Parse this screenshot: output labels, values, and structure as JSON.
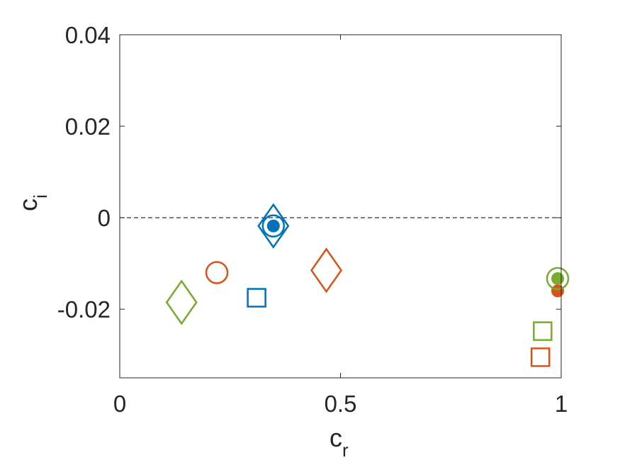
{
  "chart_data": {
    "type": "scatter",
    "title": "",
    "xlabel": {
      "base": "c",
      "sub": "r"
    },
    "ylabel": {
      "base": "c",
      "sub": "i"
    },
    "xlim": [
      0,
      1
    ],
    "ylim": [
      -0.035,
      0.04
    ],
    "x_ticks": [
      0,
      0.5,
      1
    ],
    "x_tick_labels": [
      "0",
      "0.5",
      "1"
    ],
    "y_ticks": [
      -0.02,
      0,
      0.02,
      0.04
    ],
    "y_tick_labels": [
      "-0.02",
      "0",
      "0.02",
      "0.04"
    ],
    "grid": false,
    "box": true,
    "reference_line": {
      "y": 0,
      "style": "dashed",
      "color": "#000000"
    },
    "points": [
      {
        "x": 0.348,
        "y": -0.0018,
        "marker": "diamond",
        "color": "#0072BD"
      },
      {
        "x": 0.348,
        "y": -0.0018,
        "marker": "circle",
        "color": "#0072BD"
      },
      {
        "x": 0.348,
        "y": -0.0018,
        "marker": "filled-circle",
        "color": "#0072BD"
      },
      {
        "x": 0.31,
        "y": -0.0175,
        "marker": "square",
        "color": "#0072BD"
      },
      {
        "x": 0.22,
        "y": -0.012,
        "marker": "circle",
        "color": "#D95319"
      },
      {
        "x": 0.468,
        "y": -0.0115,
        "marker": "diamond",
        "color": "#D95319"
      },
      {
        "x": 0.953,
        "y": -0.0305,
        "marker": "square",
        "color": "#D95319"
      },
      {
        "x": 0.992,
        "y": -0.016,
        "marker": "filled-circle",
        "color": "#D95319"
      },
      {
        "x": 0.14,
        "y": -0.0185,
        "marker": "diamond",
        "color": "#77AC30"
      },
      {
        "x": 0.958,
        "y": -0.0248,
        "marker": "square",
        "color": "#77AC30"
      },
      {
        "x": 0.992,
        "y": -0.0133,
        "marker": "circle",
        "color": "#77AC30"
      },
      {
        "x": 0.992,
        "y": -0.0133,
        "marker": "filled-circle",
        "color": "#77AC30"
      }
    ]
  }
}
